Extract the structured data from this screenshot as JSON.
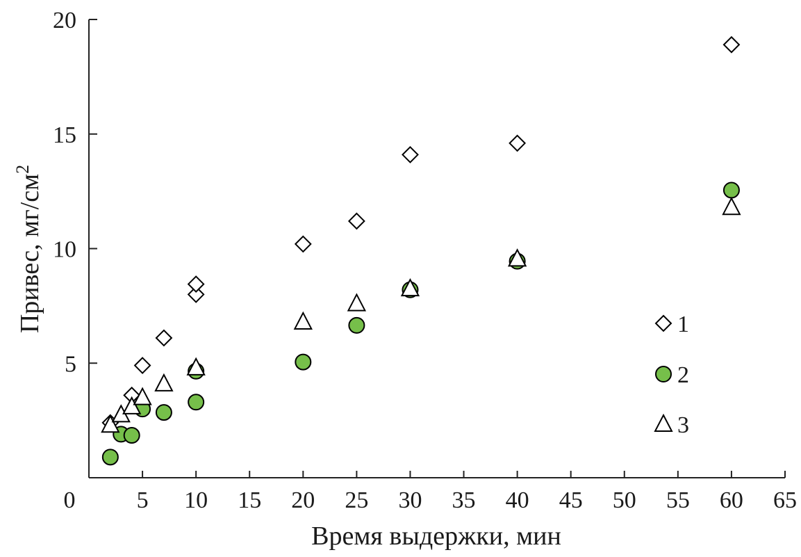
{
  "chart_data": {
    "type": "scatter",
    "title": "",
    "xlabel": "Время выдержки, мин",
    "ylabel_main": "Привес, мг/см",
    "ylabel_sup": "2",
    "xlim": [
      0,
      65
    ],
    "ylim": [
      0,
      20
    ],
    "xticks": [
      "0",
      "5",
      "10",
      "15",
      "20",
      "25",
      "30",
      "35",
      "40",
      "45",
      "50",
      "55",
      "60",
      "65"
    ],
    "yticks": [
      "5",
      "10",
      "15",
      "20"
    ],
    "grid": false,
    "legend_position": "right",
    "colors": {
      "series2_fill": "#76bf4a",
      "stroke": "#000000"
    },
    "series": [
      {
        "name": "1",
        "marker": "diamond",
        "x": [
          2,
          4,
          5,
          7,
          10,
          10,
          20,
          25,
          30,
          40,
          60
        ],
        "y": [
          2.4,
          3.6,
          4.9,
          6.1,
          8.0,
          8.45,
          10.2,
          11.2,
          14.1,
          14.6,
          18.9
        ]
      },
      {
        "name": "2",
        "marker": "circle",
        "x": [
          2,
          3,
          4,
          5,
          7,
          10,
          10,
          20,
          25,
          30,
          40,
          60
        ],
        "y": [
          0.9,
          1.9,
          1.85,
          3.0,
          2.85,
          3.3,
          4.65,
          5.05,
          6.65,
          8.2,
          9.45,
          12.55
        ]
      },
      {
        "name": "3",
        "marker": "triangle",
        "x": [
          2,
          3,
          4,
          5,
          7,
          10,
          20,
          25,
          30,
          40,
          60
        ],
        "y": [
          2.3,
          2.75,
          3.1,
          3.5,
          4.1,
          4.8,
          6.8,
          7.6,
          8.25,
          9.55,
          11.8
        ]
      }
    ]
  }
}
